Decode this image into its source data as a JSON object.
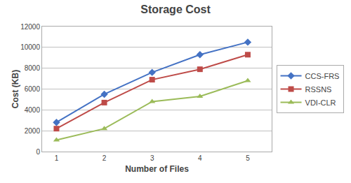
{
  "chart_data": {
    "type": "line",
    "title": "Storage Cost",
    "xlabel": "Number of Files",
    "ylabel": "Cost (KB)",
    "x": [
      1,
      2,
      3,
      4,
      5
    ],
    "series": [
      {
        "name": "CCS-FRS",
        "color": "#4472C4",
        "marker": "diamond",
        "values": [
          2800,
          5500,
          7600,
          9300,
          10500
        ]
      },
      {
        "name": "RSSNS",
        "color": "#BE4B48",
        "marker": "square",
        "values": [
          2200,
          4700,
          6900,
          7900,
          9300
        ]
      },
      {
        "name": "VDI-CLR",
        "color": "#9BBB59",
        "marker": "triangle-up",
        "values": [
          1100,
          2200,
          4800,
          5300,
          6800
        ]
      }
    ],
    "xlim": [
      0.7,
      5.5
    ],
    "xticks": [
      1,
      2,
      3,
      4,
      5
    ],
    "ylim": [
      0,
      12000
    ],
    "yticks": [
      0,
      2000,
      4000,
      6000,
      8000,
      10000,
      12000
    ],
    "grid": "y",
    "legend": "right"
  }
}
